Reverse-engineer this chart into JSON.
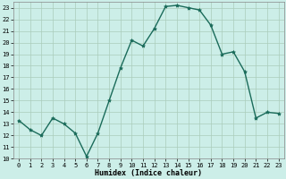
{
  "x": [
    0,
    1,
    2,
    3,
    4,
    5,
    6,
    7,
    8,
    9,
    10,
    11,
    12,
    13,
    14,
    15,
    16,
    17,
    18,
    19,
    20,
    21,
    22,
    23
  ],
  "y": [
    13.3,
    12.5,
    12.0,
    13.5,
    13.0,
    12.2,
    10.2,
    12.2,
    15.0,
    17.8,
    20.2,
    19.7,
    21.2,
    23.1,
    23.2,
    23.0,
    22.8,
    21.5,
    19.0,
    19.2,
    17.5,
    13.5,
    14.0,
    13.9
  ],
  "line_color": "#1a6b5a",
  "marker": "*",
  "marker_size": 3,
  "bg_color": "#cceee8",
  "grid_color": "#aaccbb",
  "xlabel": "Humidex (Indice chaleur)",
  "ylim": [
    10,
    23.5
  ],
  "yticks": [
    10,
    11,
    12,
    13,
    14,
    15,
    16,
    17,
    18,
    19,
    20,
    21,
    22,
    23
  ],
  "xticks": [
    0,
    1,
    2,
    3,
    4,
    5,
    6,
    7,
    8,
    9,
    10,
    11,
    12,
    13,
    14,
    15,
    16,
    17,
    18,
    19,
    20,
    21,
    22,
    23
  ],
  "linewidth": 1.0,
  "xlabel_fontsize": 6.0,
  "tick_fontsize": 5.0
}
